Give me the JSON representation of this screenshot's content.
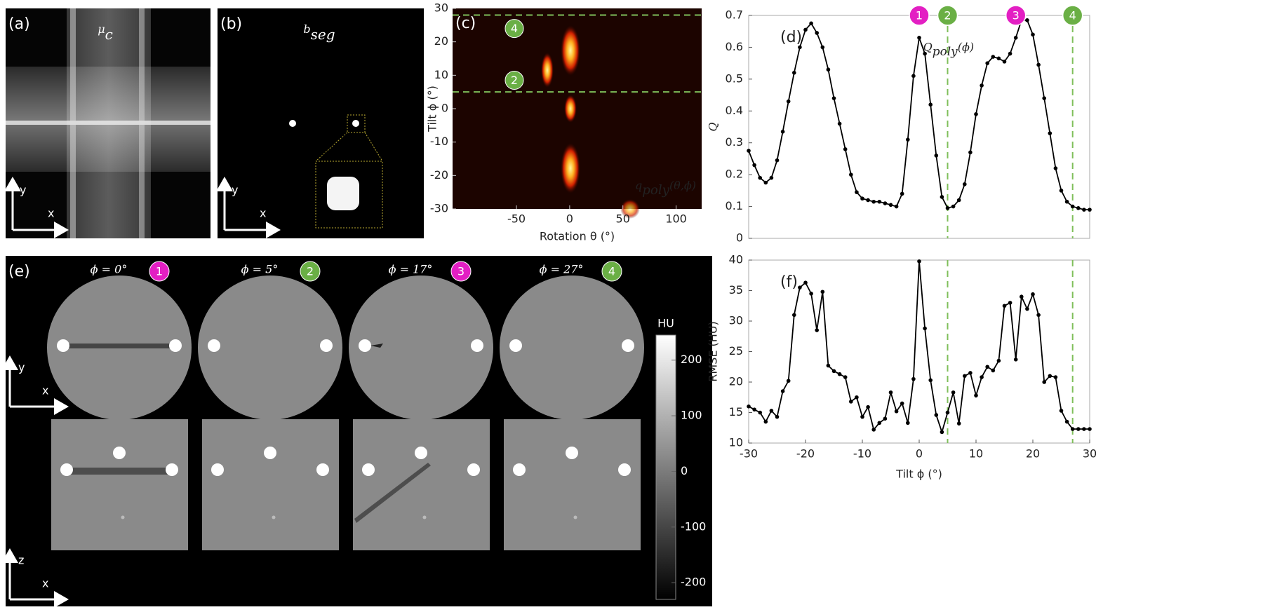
{
  "panels": {
    "a": {
      "label": "(a)",
      "symbol": "μ",
      "subscript": "c",
      "axis_y": "y",
      "axis_x": "x"
    },
    "b": {
      "label": "(b)",
      "symbol": "b",
      "subscript": "seg",
      "axis_y": "y",
      "axis_x": "x"
    },
    "e": {
      "label": "(e)",
      "columns": [
        {
          "title": "ϕ = 0°",
          "marker": "1",
          "marker_color": "#e31fc3"
        },
        {
          "title": "ϕ = 5°",
          "marker": "2",
          "marker_color": "#6aaf45"
        },
        {
          "title": "ϕ = 17°",
          "marker": "3",
          "marker_color": "#e31fc3"
        },
        {
          "title": "ϕ = 27°",
          "marker": "4",
          "marker_color": "#6aaf45"
        }
      ],
      "axes_top": {
        "y": "y",
        "x": "x"
      },
      "axes_bottom": {
        "y": "z",
        "x": "x"
      },
      "colorbar": {
        "title": "HU",
        "lim": [
          -230,
          245
        ],
        "ticks": [
          200,
          100,
          0,
          -100,
          -200
        ]
      }
    }
  },
  "chart_data": [
    {
      "type": "heatmap",
      "label": "(c)",
      "xlabel": "Rotation θ (°)",
      "ylabel": "Tilt ϕ (°)",
      "annotation": {
        "symbol": "q",
        "subscript": "poly",
        "args": "(θ,ϕ)"
      },
      "xlim": [
        -110,
        124
      ],
      "xticks": [
        -50,
        0,
        50,
        100
      ],
      "ylim": [
        -30,
        30
      ],
      "yticks": [
        -30,
        -20,
        -10,
        0,
        10,
        20,
        30
      ],
      "hlines": [
        28,
        5
      ],
      "line_color": "#7fbf5a",
      "markers": [
        {
          "label": "4",
          "x": -52,
          "y": 24,
          "color": "#6aaf45"
        },
        {
          "label": "2",
          "x": -52,
          "y": 8.5,
          "color": "#6aaf45"
        }
      ]
    },
    {
      "type": "line",
      "label": "(d)",
      "ylabel": "Q",
      "annotation": {
        "symbol": "Q",
        "subscript": "poly",
        "args": "(ϕ)"
      },
      "xlim": [
        -30,
        30
      ],
      "ylim": [
        0,
        0.7
      ],
      "yticks": [
        0,
        0.1,
        0.2,
        0.3,
        0.4,
        0.5,
        0.6,
        0.7
      ],
      "color": "#000000",
      "vlines": [
        5,
        27
      ],
      "line_color": "#7fbf5a",
      "markers": [
        {
          "label": "1",
          "x": 0,
          "color": "#e31fc3"
        },
        {
          "label": "2",
          "x": 5,
          "color": "#6aaf45"
        },
        {
          "label": "3",
          "x": 17,
          "color": "#e31fc3"
        },
        {
          "label": "4",
          "x": 27,
          "color": "#6aaf45"
        }
      ],
      "x": [
        -30,
        -29,
        -28,
        -27,
        -26,
        -25,
        -24,
        -23,
        -22,
        -21,
        -20,
        -19,
        -18,
        -17,
        -16,
        -15,
        -14,
        -13,
        -12,
        -11,
        -10,
        -9,
        -8,
        -7,
        -6,
        -5,
        -4,
        -3,
        -2,
        -1,
        0,
        1,
        2,
        3,
        4,
        5,
        6,
        7,
        8,
        9,
        10,
        11,
        12,
        13,
        14,
        15,
        16,
        17,
        18,
        19,
        20,
        21,
        22,
        23,
        24,
        25,
        26,
        27,
        28,
        29,
        30
      ],
      "values": [
        0.275,
        0.23,
        0.19,
        0.175,
        0.19,
        0.245,
        0.335,
        0.43,
        0.52,
        0.6,
        0.655,
        0.675,
        0.645,
        0.6,
        0.53,
        0.44,
        0.36,
        0.28,
        0.2,
        0.145,
        0.125,
        0.12,
        0.115,
        0.115,
        0.11,
        0.105,
        0.1,
        0.14,
        0.31,
        0.51,
        0.63,
        0.58,
        0.42,
        0.26,
        0.13,
        0.095,
        0.1,
        0.12,
        0.17,
        0.27,
        0.39,
        0.48,
        0.55,
        0.57,
        0.565,
        0.555,
        0.58,
        0.63,
        0.685,
        0.685,
        0.64,
        0.545,
        0.44,
        0.33,
        0.22,
        0.15,
        0.115,
        0.1,
        0.095,
        0.09,
        0.09
      ]
    },
    {
      "type": "line",
      "label": "(f)",
      "ylabel": "RMSE (HU)",
      "xlabel": "Tilt ϕ (°)",
      "xlim": [
        -30,
        30
      ],
      "xticks": [
        -30,
        -20,
        -10,
        0,
        10,
        20,
        30
      ],
      "ylim": [
        10,
        40
      ],
      "yticks": [
        10,
        15,
        20,
        25,
        30,
        35,
        40
      ],
      "color": "#000000",
      "vlines": [
        5,
        27
      ],
      "line_color": "#7fbf5a",
      "x": [
        -30,
        -29,
        -28,
        -27,
        -26,
        -25,
        -24,
        -23,
        -22,
        -21,
        -20,
        -19,
        -18,
        -17,
        -16,
        -15,
        -14,
        -13,
        -12,
        -11,
        -10,
        -9,
        -8,
        -7,
        -6,
        -5,
        -4,
        -3,
        -2,
        -1,
        0,
        1,
        2,
        3,
        4,
        5,
        6,
        7,
        8,
        9,
        10,
        11,
        12,
        13,
        14,
        15,
        16,
        17,
        18,
        19,
        20,
        21,
        22,
        23,
        24,
        25,
        26,
        27,
        28,
        29,
        30
      ],
      "values": [
        16,
        15.5,
        15,
        13.5,
        15.3,
        14.3,
        18.5,
        20.2,
        31,
        35.5,
        36.3,
        34.5,
        28.5,
        34.8,
        22.7,
        21.8,
        21.3,
        20.8,
        16.8,
        17.5,
        14.3,
        15.9,
        12.2,
        13.3,
        14,
        18.3,
        15.2,
        16.5,
        13.3,
        20.5,
        39.8,
        28.8,
        20.3,
        14.6,
        11.8,
        15,
        18.3,
        13.2,
        21,
        21.5,
        17.8,
        20.8,
        22.5,
        21.9,
        23.5,
        32.5,
        33,
        23.7,
        34,
        32,
        34.4,
        31,
        20,
        21,
        20.8,
        15.3,
        13.5,
        12.3,
        12.3,
        12.3,
        12.3
      ]
    }
  ]
}
